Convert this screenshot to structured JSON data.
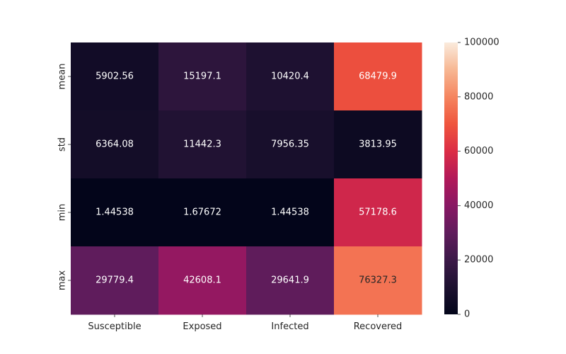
{
  "chart_data": {
    "type": "heatmap",
    "title": "",
    "xlabel": "",
    "ylabel": "",
    "columns": [
      "Susceptible",
      "Exposed",
      "Infected",
      "Recovered"
    ],
    "rows": [
      "mean",
      "std",
      "min",
      "max"
    ],
    "values": [
      [
        5902.56,
        15197.1,
        10420.4,
        68479.9
      ],
      [
        6364.08,
        11442.3,
        7956.35,
        3813.95
      ],
      [
        1.44538,
        1.67672,
        1.44538,
        57178.6
      ],
      [
        29779.4,
        42608.1,
        29641.9,
        76327.3
      ]
    ],
    "value_labels": [
      [
        "5902.56",
        "15197.1",
        "10420.4",
        "68479.9"
      ],
      [
        "6364.08",
        "11442.3",
        "7956.35",
        "3813.95"
      ],
      [
        "1.44538",
        "1.67672",
        "1.44538",
        "57178.6"
      ],
      [
        "29779.4",
        "42608.1",
        "29641.9",
        "76327.3"
      ]
    ],
    "colorbar": {
      "range": [
        0,
        100000
      ],
      "ticks": [
        0,
        20000,
        40000,
        60000,
        80000,
        100000
      ],
      "tick_labels": [
        "0",
        "20000",
        "40000",
        "60000",
        "80000",
        "100000"
      ],
      "colormap": "rocket"
    },
    "grid": false,
    "legend": "colorbar-right"
  }
}
